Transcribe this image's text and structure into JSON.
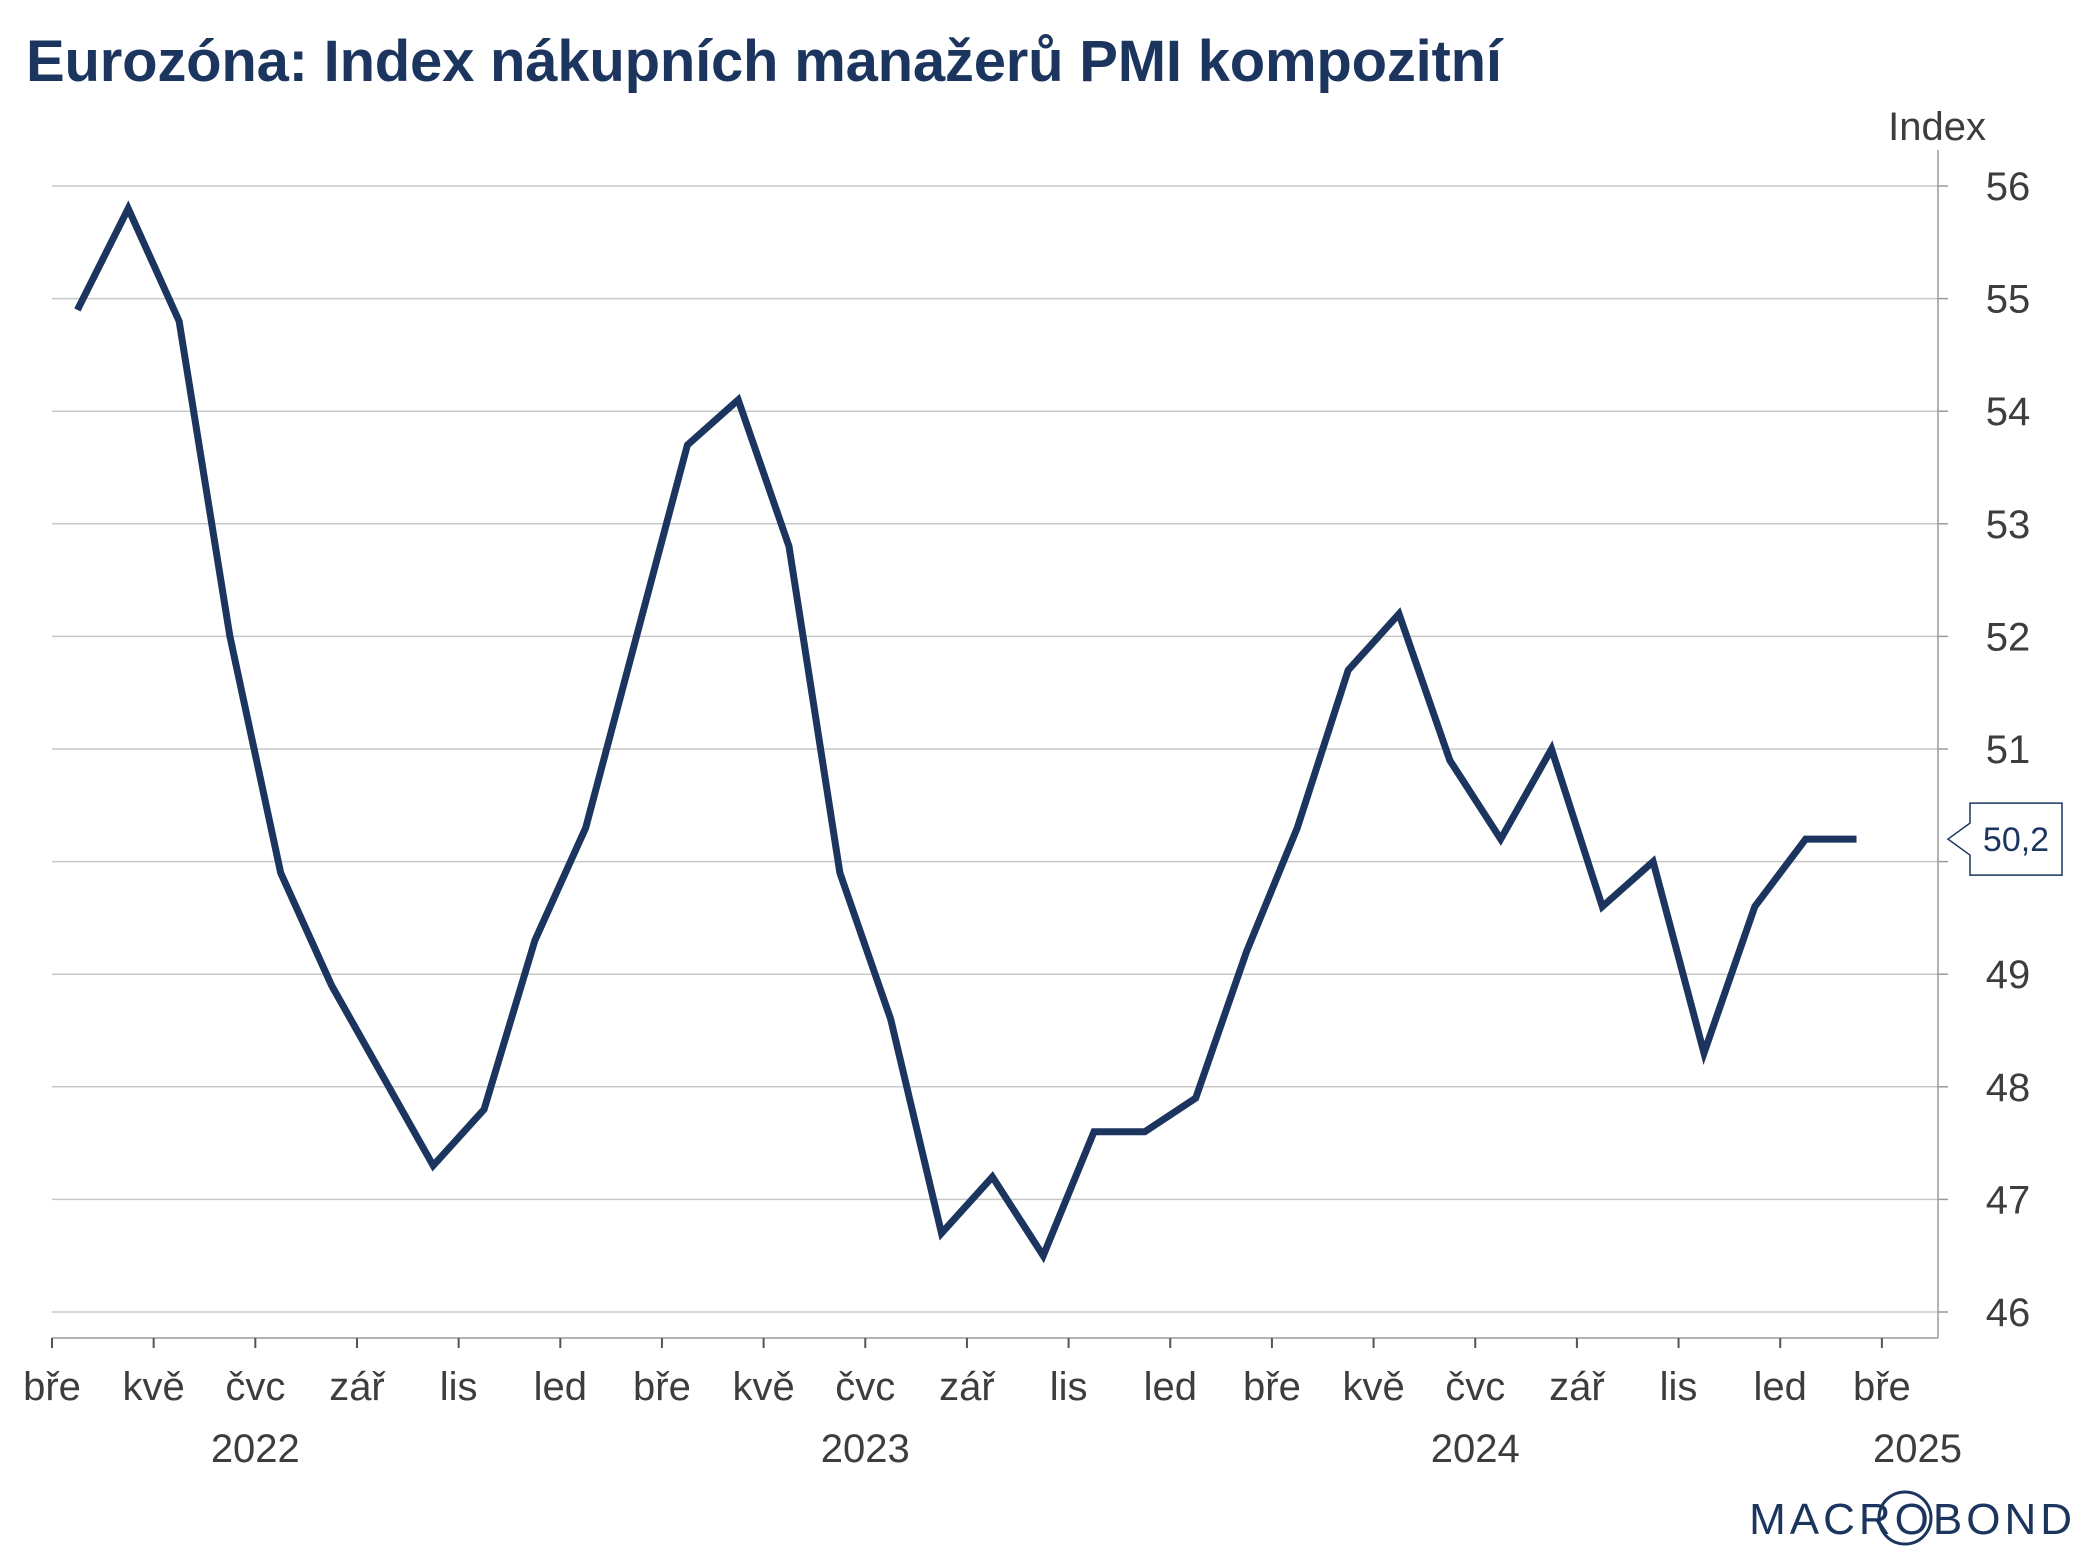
{
  "title": "Eurozóna: Index nákupních manažerů PMI kompozitní",
  "logo": {
    "text": "MACROBOND"
  },
  "chart_data": {
    "type": "line",
    "title": "Eurozóna: Index nákupních manažerů PMI kompozitní",
    "ylabel": "Index",
    "xlabel": "",
    "ylim": [
      46,
      56
    ],
    "y_ticks": [
      46,
      47,
      48,
      49,
      50,
      51,
      52,
      53,
      54,
      55,
      56
    ],
    "y_tick_labels": [
      "46",
      "47",
      "48",
      "49",
      "",
      "51",
      "52",
      "53",
      "54",
      "55",
      "56"
    ],
    "y_axis_side": "right",
    "grid": true,
    "x_tick_labels": [
      "bře",
      "kvě",
      "čvc",
      "zář",
      "lis",
      "led",
      "bře",
      "kvě",
      "čvc",
      "zář",
      "lis",
      "led",
      "bře",
      "kvě",
      "čvc",
      "zář",
      "lis",
      "led",
      "bře"
    ],
    "x_year_labels": [
      "2022",
      "2023",
      "2024",
      "2025"
    ],
    "line_color": "#1c355e",
    "last_value_label": "50,2",
    "series": [
      {
        "x": [
          "2022-03",
          "2022-04",
          "2022-05",
          "2022-06",
          "2022-07",
          "2022-08",
          "2022-09",
          "2022-10",
          "2022-11",
          "2022-12",
          "2023-01",
          "2023-02",
          "2023-03",
          "2023-04",
          "2023-05",
          "2023-06",
          "2023-07",
          "2023-08",
          "2023-09",
          "2023-10",
          "2023-11",
          "2023-12",
          "2024-01",
          "2024-02",
          "2024-03",
          "2024-04",
          "2024-05",
          "2024-06",
          "2024-07",
          "2024-08",
          "2024-09",
          "2024-10",
          "2024-11",
          "2024-12",
          "2025-01",
          "2025-02"
        ],
        "values": [
          54.9,
          55.8,
          54.8,
          52.0,
          49.9,
          48.9,
          48.1,
          47.3,
          47.8,
          49.3,
          50.3,
          52.0,
          53.7,
          54.1,
          52.8,
          49.9,
          48.6,
          46.7,
          47.2,
          46.5,
          47.6,
          47.6,
          47.9,
          49.2,
          50.3,
          51.7,
          52.2,
          50.9,
          50.2,
          51.0,
          49.6,
          50.0,
          48.3,
          49.6,
          50.2,
          50.2
        ]
      }
    ]
  }
}
